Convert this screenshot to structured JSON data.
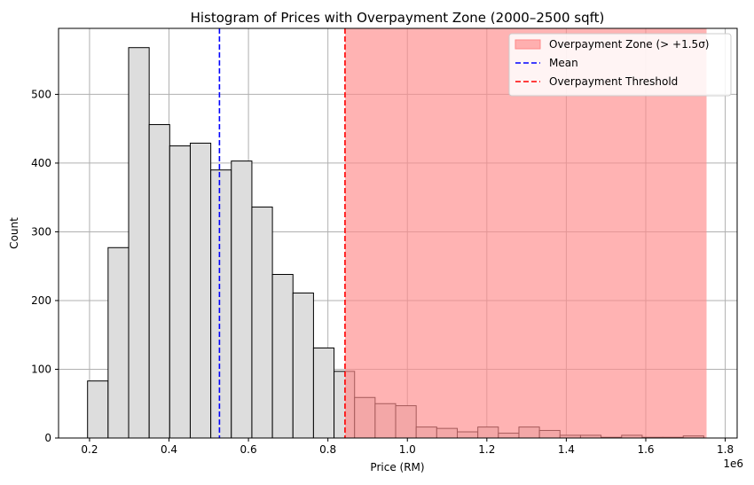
{
  "chart_data": {
    "type": "bar",
    "title": "Histogram of Prices with Overpayment Zone (2000–2500 sqft)",
    "xlabel": "Price (RM)",
    "ylabel": "Count",
    "x_offset_label": "1e6",
    "xlim": [
      0.122,
      1.83
    ],
    "ylim": [
      0,
      596
    ],
    "xticks": [
      0.2,
      0.4,
      0.6,
      0.8,
      1.0,
      1.2,
      1.4,
      1.6,
      1.8
    ],
    "xtick_labels": [
      "0.2",
      "0.4",
      "0.6",
      "0.8",
      "1.0",
      "1.2",
      "1.4",
      "1.6",
      "1.8"
    ],
    "yticks": [
      0,
      100,
      200,
      300,
      400,
      500
    ],
    "grid": true,
    "legend_position": "top-right",
    "bin_edges": [
      0.195,
      0.2467,
      0.2984,
      0.3501,
      0.4018,
      0.4535,
      0.5052,
      0.5569,
      0.6086,
      0.6603,
      0.712,
      0.7637,
      0.8154,
      0.8671,
      0.9188,
      0.9705,
      1.0222,
      1.0739,
      1.1256,
      1.1773,
      1.229,
      1.2807,
      1.3324,
      1.3841,
      1.4358,
      1.4875,
      1.5392,
      1.5909,
      1.6426,
      1.6943,
      1.746
    ],
    "counts": [
      83,
      277,
      568,
      456,
      425,
      429,
      390,
      403,
      336,
      238,
      211,
      131,
      97,
      59,
      50,
      47,
      16,
      14,
      9,
      16,
      7,
      16,
      11,
      4,
      4,
      1,
      4,
      1,
      1,
      3
    ],
    "mean": 0.527,
    "threshold": 0.843,
    "zone_end": 1.753,
    "legend": [
      {
        "label": "Overpayment Zone (> +1.5σ)",
        "kind": "patch",
        "color": "#ff8a8a"
      },
      {
        "label": "Mean",
        "kind": "dashed-line",
        "color": "#0000ff"
      },
      {
        "label": "Overpayment Threshold",
        "kind": "dashed-line",
        "color": "#ff0000"
      }
    ],
    "colors": {
      "bar_fill": "#dddddd",
      "bar_edge": "#000000",
      "zone_fill": "#ff8a8a",
      "mean_line": "#0000ff",
      "threshold_line": "#ff0000",
      "grid": "#b0b0b0"
    }
  }
}
